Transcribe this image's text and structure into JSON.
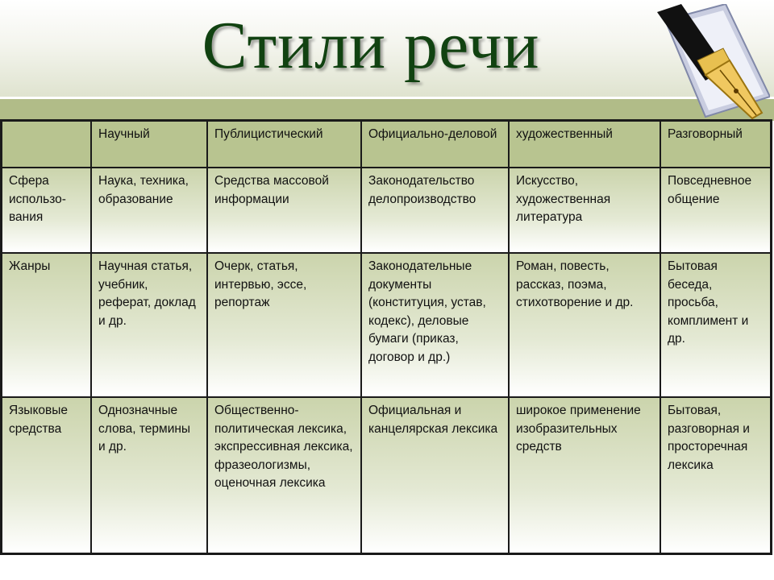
{
  "title": "Стили речи",
  "icons": {
    "pen": "fountain-pen-icon"
  },
  "colors": {
    "title": "#114211",
    "header_row": "#b8c490",
    "band": "#b1bc88"
  },
  "table": {
    "headers": [
      "",
      "Научный",
      "Публицистический",
      "Официально-деловой",
      "художественный",
      "Разговорный"
    ],
    "rows": [
      {
        "label": "Сфера использо-вания",
        "cells": [
          "Наука, техника, образование",
          "Средства массовой информации",
          "Законодательство делопроизводство",
          "Искусство, художественная литература",
          "Повседневное общение"
        ]
      },
      {
        "label": "Жанры",
        "cells": [
          "Научная статья, учебник, реферат, доклад и др.",
          "Очерк, статья, интервью, эссе, репортаж",
          "Законодательные документы (конституция, устав, кодекс), деловые бумаги (приказ, договор и др.)",
          "Роман, повесть, рассказ, поэма, стихотворение и др.",
          "Бытовая беседа, просьба, комплимент и др."
        ]
      },
      {
        "label": "Языковые средства",
        "cells": [
          "Однозначные слова, термины и др.",
          "Общественно-политическая лексика, экспрессивная лексика, фразеологизмы, оценочная лексика",
          "Официальная и канцелярская лексика",
          " широкое применение изобразительных средств",
          "Бытовая, разговорная и просторечная лексика"
        ]
      }
    ]
  }
}
